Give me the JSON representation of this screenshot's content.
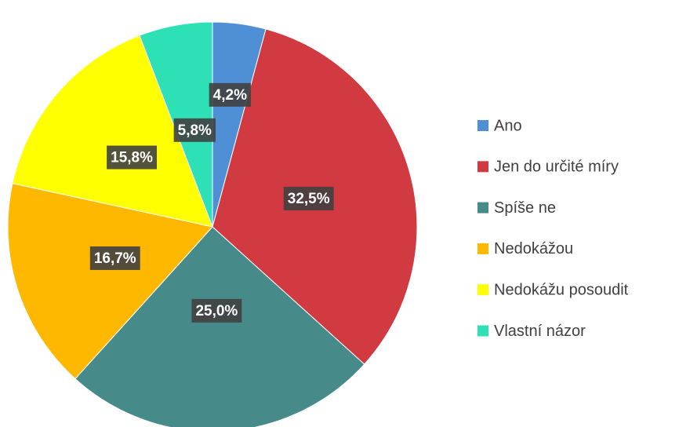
{
  "chart_data": {
    "type": "pie",
    "categories": [
      "Ano",
      "Jen do určité míry",
      "Spíše ne",
      "Nedokážou",
      "Nedokážu posoudit",
      "Vlastní názor"
    ],
    "values": [
      4.2,
      32.5,
      25.0,
      16.7,
      15.8,
      5.8
    ],
    "value_labels": [
      "4,2%",
      "32,5%",
      "25,0%",
      "16,7%",
      "15,8%",
      "5,8%"
    ],
    "colors": [
      "#4f8fd6",
      "#d03a40",
      "#468a89",
      "#ffb800",
      "#ffff00",
      "#2ee0b5"
    ],
    "legend": "right"
  }
}
